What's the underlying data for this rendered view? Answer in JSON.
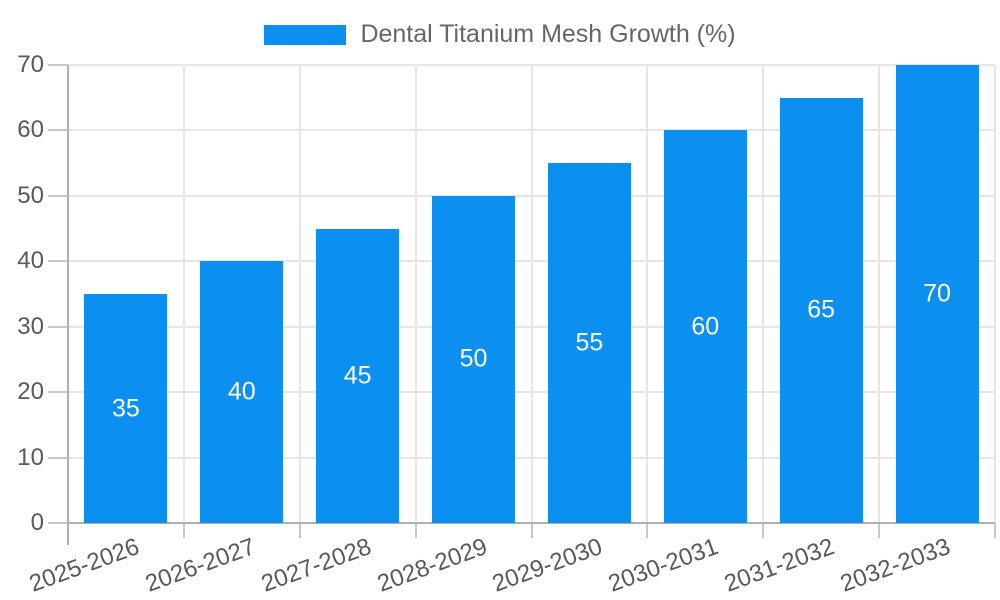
{
  "legend": {
    "label": "Dental Titanium Mesh Growth (%)"
  },
  "colors": {
    "bar": "#0b90f2",
    "grid": "#e6e6e6",
    "axis": "#b0b0b0",
    "tick": "#c8c8c8",
    "tick_text": "#595959",
    "legend_text": "#666666",
    "value_label": "#ffffff",
    "background": "#ffffff"
  },
  "chart_data": {
    "type": "bar",
    "title": "Dental Titanium Mesh Growth (%)",
    "categories": [
      "2025-2026",
      "2026-2027",
      "2027-2028",
      "2028-2029",
      "2029-2030",
      "2030-2031",
      "2031-2032",
      "2032-2033"
    ],
    "values": [
      35,
      40,
      45,
      50,
      55,
      60,
      65,
      70
    ],
    "xlabel": "",
    "ylabel": "",
    "ylim": [
      0,
      70
    ],
    "yticks": [
      0,
      10,
      20,
      30,
      40,
      50,
      60,
      70
    ],
    "grid": true,
    "legend_position": "top-center",
    "bar_label_position": "center",
    "x_tick_rotation_deg": -20
  }
}
